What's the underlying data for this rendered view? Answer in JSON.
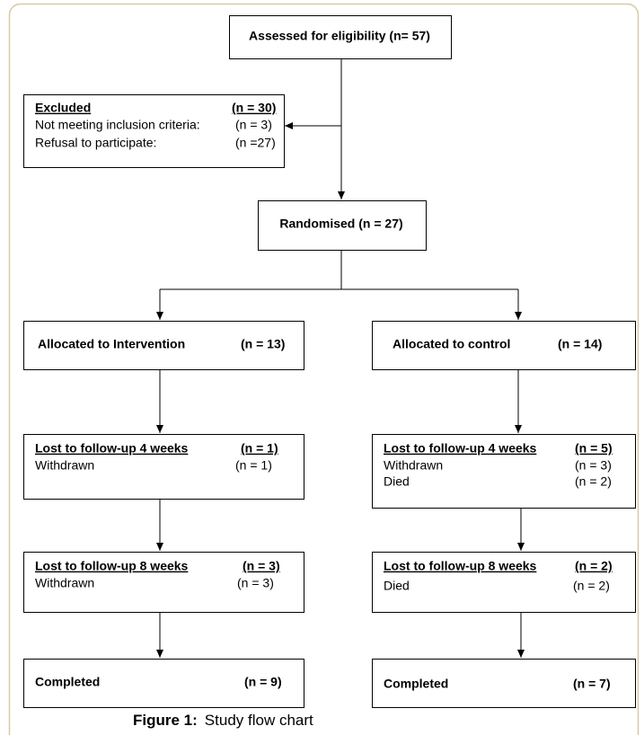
{
  "assessed": {
    "label": "Assessed for eligibility (n= 57)"
  },
  "excluded": {
    "label": "Excluded",
    "count": "(n = 30)",
    "rows": [
      [
        "Not meeting inclusion criteria:",
        "(n = 3)"
      ],
      [
        "Refusal to participate:",
        "(n =27)"
      ]
    ]
  },
  "randomised": {
    "label": "Randomised (n = 27)"
  },
  "arms": [
    {
      "allocated": {
        "label": "Allocated to Intervention",
        "count": "(n = 13)"
      },
      "lost_4_weeks": {
        "label": "Lost to follow-up 4 weeks",
        "count": "(n = 1)",
        "rows": [
          [
            "Withdrawn",
            "(n = 1)"
          ]
        ]
      },
      "lost_8_weeks": {
        "label": "Lost to follow-up 8 weeks",
        "count": "(n = 3)",
        "rows": [
          [
            "Withdrawn",
            "(n = 3)"
          ]
        ]
      },
      "completed": {
        "label": "Completed",
        "count": "(n = 9)"
      }
    },
    {
      "allocated": {
        "label": "Allocated to control",
        "count": "(n = 14)"
      },
      "lost_4_weeks": {
        "label": "Lost to follow-up 4 weeks",
        "count": "(n = 5)",
        "rows": [
          [
            "Withdrawn",
            "(n = 3)"
          ],
          [
            "Died",
            "(n = 2)"
          ]
        ]
      },
      "lost_8_weeks": {
        "label": "Lost to follow-up 8 weeks",
        "count": "(n = 2)",
        "rows": [
          [
            "Died",
            "(n = 2)"
          ]
        ]
      },
      "completed": {
        "label": "Completed",
        "count": "(n = 7)"
      }
    }
  ],
  "caption": {
    "label": "Figure 1:",
    "text": "Study flow chart"
  }
}
